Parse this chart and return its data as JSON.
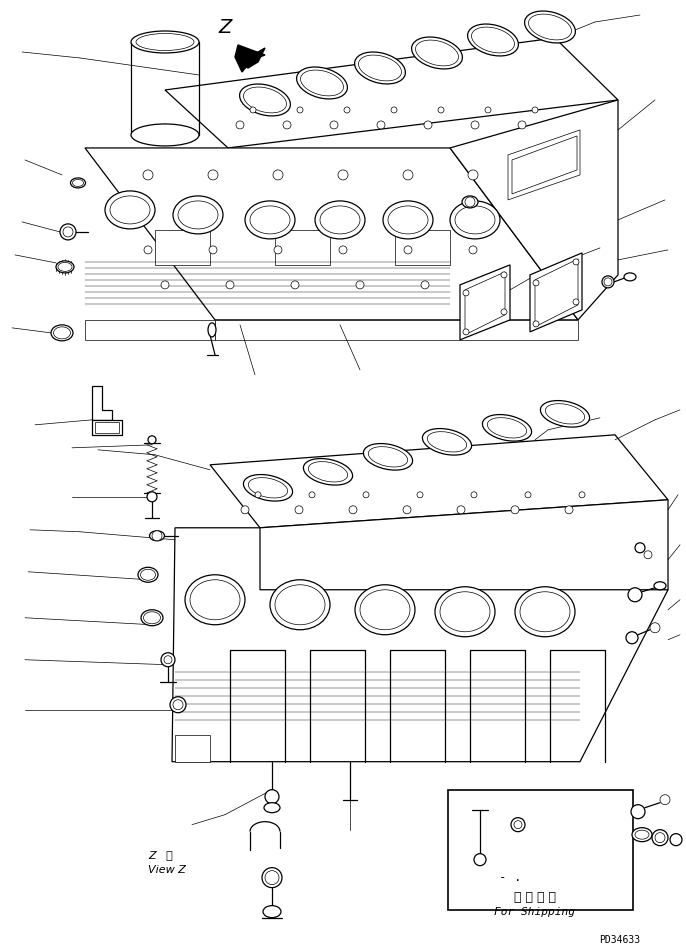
{
  "background_color": "#ffffff",
  "fig_width": 6.86,
  "fig_height": 9.46,
  "dpi": 100,
  "label_z": "Z",
  "label_z_kanji": "视",
  "label_view_z": "View Z",
  "label_shipping_jp": "運 携 部 品",
  "label_shipping_en": "For Shipping",
  "label_part_number": "PD34633",
  "line_color": "#000000",
  "lw_main": 0.9,
  "lw_thin": 0.5,
  "lw_leader": 0.5
}
